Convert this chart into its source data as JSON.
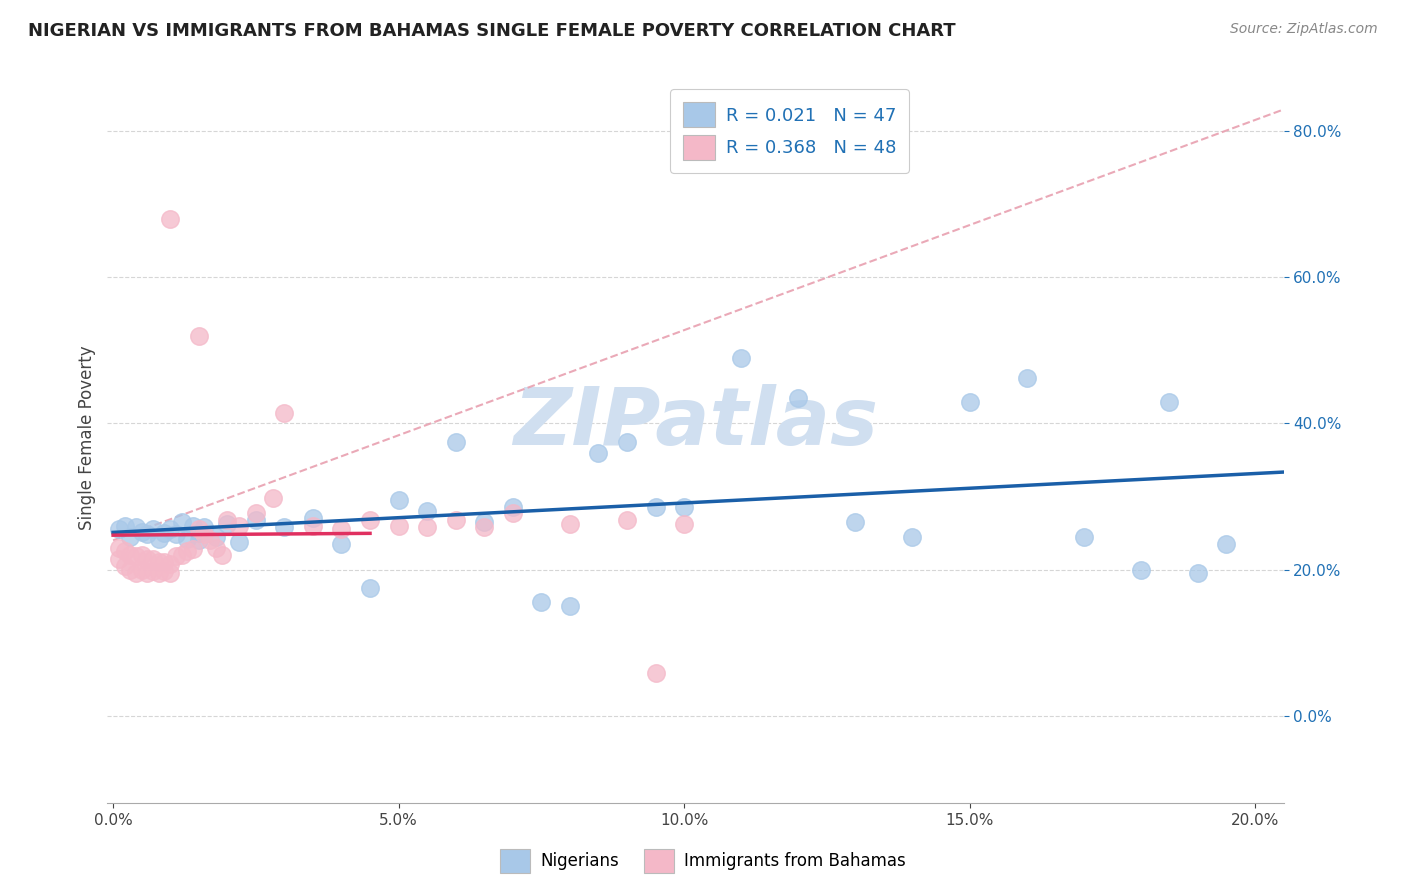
{
  "title": "NIGERIAN VS IMMIGRANTS FROM BAHAMAS SINGLE FEMALE POVERTY CORRELATION CHART",
  "source": "Source: ZipAtlas.com",
  "ylabel": "Single Female Poverty",
  "legend_labels": [
    "Nigerians",
    "Immigrants from Bahamas"
  ],
  "legend_r": [
    "R = 0.021",
    "N = 47",
    "R = 0.368",
    "N = 48"
  ],
  "blue_color": "#a8c8e8",
  "pink_color": "#f4b8c8",
  "blue_line_color": "#1a5fa8",
  "pink_line_color": "#e03060",
  "dash_line_color": "#e8a0b0",
  "text_color": "#2171b5",
  "watermark_color": "#d0dff0",
  "watermark": "ZIPatlas",
  "xlim_low": -0.001,
  "xlim_high": 0.205,
  "ylim_low": -0.12,
  "ylim_high": 0.88,
  "xtick_vals": [
    0.0,
    0.05,
    0.1,
    0.15,
    0.2
  ],
  "ytick_vals": [
    0.0,
    0.2,
    0.4,
    0.6,
    0.8
  ],
  "blue_x": [
    0.001,
    0.002,
    0.003,
    0.004,
    0.005,
    0.006,
    0.007,
    0.008,
    0.009,
    0.01,
    0.011,
    0.012,
    0.013,
    0.014,
    0.015,
    0.015,
    0.016,
    0.018,
    0.02,
    0.022,
    0.025,
    0.03,
    0.035,
    0.04,
    0.045,
    0.05,
    0.055,
    0.06,
    0.065,
    0.07,
    0.075,
    0.08,
    0.085,
    0.09,
    0.095,
    0.1,
    0.11,
    0.12,
    0.13,
    0.14,
    0.15,
    0.16,
    0.17,
    0.18,
    0.185,
    0.19,
    0.195
  ],
  "blue_y": [
    0.255,
    0.26,
    0.245,
    0.258,
    0.252,
    0.248,
    0.255,
    0.242,
    0.25,
    0.255,
    0.248,
    0.265,
    0.242,
    0.26,
    0.25,
    0.24,
    0.258,
    0.245,
    0.262,
    0.238,
    0.268,
    0.258,
    0.27,
    0.235,
    0.175,
    0.295,
    0.28,
    0.375,
    0.265,
    0.285,
    0.155,
    0.15,
    0.36,
    0.375,
    0.285,
    0.285,
    0.49,
    0.435,
    0.265,
    0.245,
    0.43,
    0.462,
    0.245,
    0.2,
    0.43,
    0.195,
    0.235
  ],
  "pink_x": [
    0.001,
    0.001,
    0.002,
    0.002,
    0.003,
    0.003,
    0.004,
    0.004,
    0.005,
    0.005,
    0.006,
    0.006,
    0.007,
    0.007,
    0.008,
    0.008,
    0.009,
    0.009,
    0.01,
    0.01,
    0.011,
    0.012,
    0.013,
    0.014,
    0.015,
    0.016,
    0.017,
    0.018,
    0.019,
    0.02,
    0.022,
    0.025,
    0.028,
    0.03,
    0.035,
    0.04,
    0.045,
    0.05,
    0.055,
    0.06,
    0.065,
    0.07,
    0.08,
    0.09,
    0.095,
    0.1,
    0.015,
    0.01
  ],
  "pink_y": [
    0.23,
    0.215,
    0.225,
    0.205,
    0.22,
    0.2,
    0.218,
    0.195,
    0.22,
    0.2,
    0.215,
    0.195,
    0.215,
    0.198,
    0.21,
    0.195,
    0.21,
    0.198,
    0.208,
    0.195,
    0.218,
    0.22,
    0.225,
    0.228,
    0.255,
    0.248,
    0.24,
    0.23,
    0.22,
    0.268,
    0.26,
    0.278,
    0.298,
    0.415,
    0.26,
    0.255,
    0.268,
    0.26,
    0.258,
    0.268,
    0.258,
    0.278,
    0.262,
    0.268,
    0.058,
    0.262,
    0.52,
    0.68
  ]
}
